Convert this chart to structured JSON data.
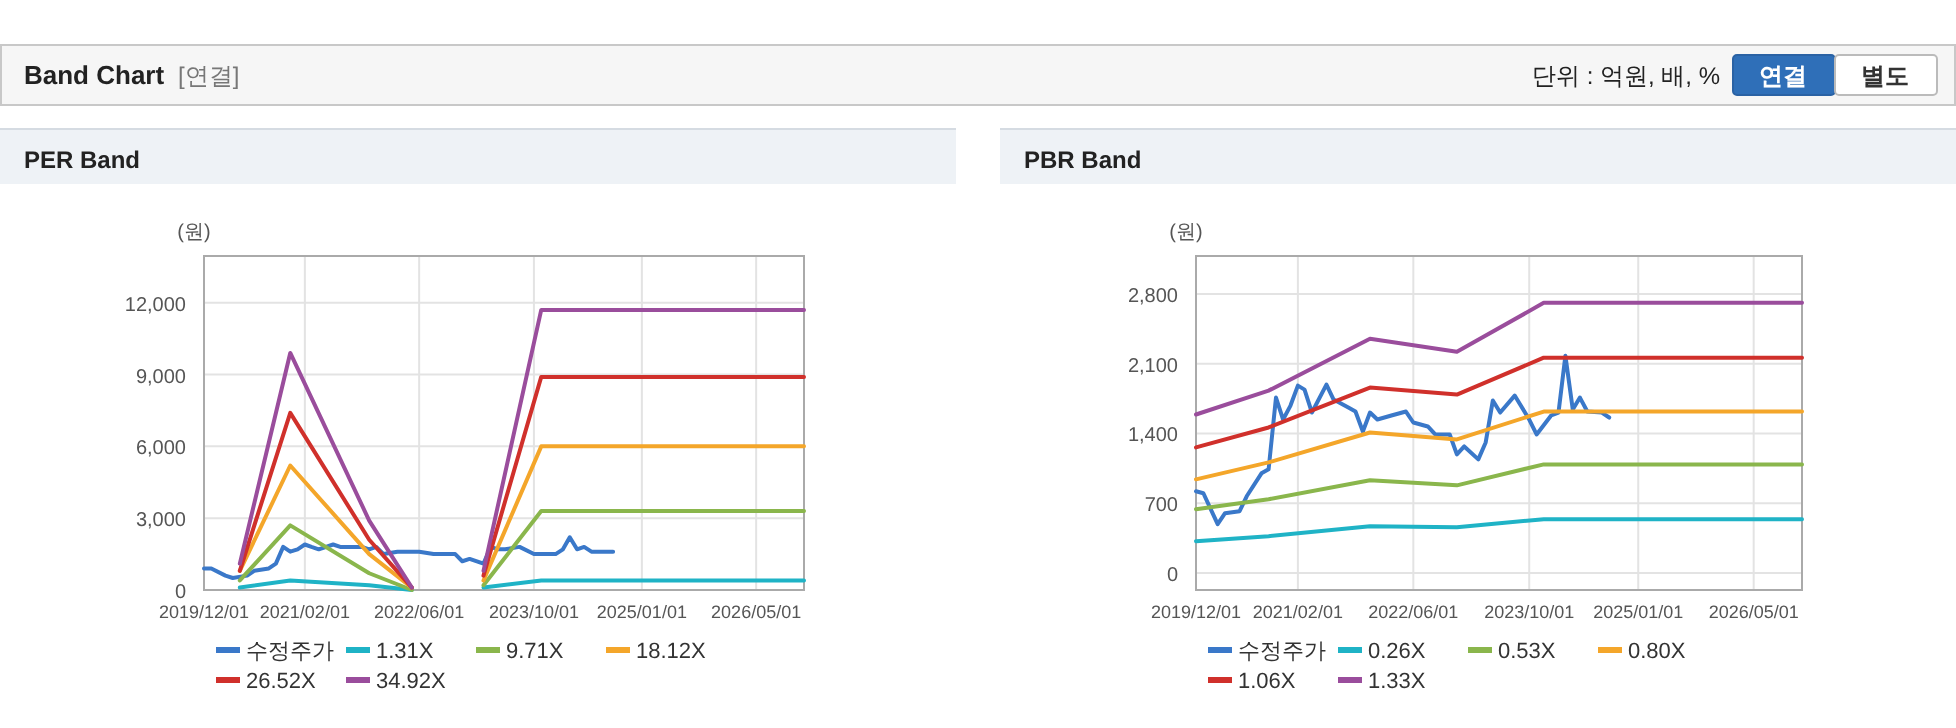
{
  "chart_data": [
    {
      "type": "other",
      "title": "Band Chart",
      "annotations": [
        "[연결]",
        "단위 : 억원, 배, %",
        "연결",
        "별도"
      ]
    },
    {
      "type": "line",
      "title": "PER Band",
      "ylabel": "(원)",
      "xlim": [
        "2019-12-01",
        "2026-11-20"
      ],
      "ylim": [
        0,
        13950
      ],
      "yticks": [
        {
          "value": 0,
          "label": "0"
        },
        {
          "value": 3000,
          "label": "3,000"
        },
        {
          "value": 6000,
          "label": "6,000"
        },
        {
          "value": 9000,
          "label": "9,000"
        },
        {
          "value": 12000,
          "label": "12,000"
        }
      ],
      "xticks": [
        {
          "value": "2019-12-01",
          "label": "2019/12/01"
        },
        {
          "value": "2021-02-01",
          "label": "2021/02/01"
        },
        {
          "value": "2022-06-01",
          "label": "2022/06/01"
        },
        {
          "value": "2023-10-01",
          "label": "2023/10/01"
        },
        {
          "value": "2025-01-01",
          "label": "2025/01/01"
        },
        {
          "value": "2026-05-01",
          "label": "2026/05/01"
        }
      ],
      "grid": true,
      "legend": "bottom",
      "marker": "none",
      "line_style": "solid",
      "series": [
        {
          "name": "수정주가",
          "color": "#3a78c9",
          "x": [
            "2019-12",
            "2020-01",
            "2020-03",
            "2020-04",
            "2020-06",
            "2020-07",
            "2020-09",
            "2020-10",
            "2020-11",
            "2020-12",
            "2021-01",
            "2021-02",
            "2021-03",
            "2021-04",
            "2021-06",
            "2021-07",
            "2021-09",
            "2021-10",
            "2021-11",
            "2021-12",
            "2022-01",
            "2022-03",
            "2022-05",
            "2022-06",
            "2022-08",
            "2022-09",
            "2022-11",
            "2022-12",
            "2023-01",
            "2023-03",
            "2023-04",
            "2023-05",
            "2023-06",
            "2023-08",
            "2023-10",
            "2023-11",
            "2024-01",
            "2024-02",
            "2024-03",
            "2024-04",
            "2024-05",
            "2024-06",
            "2024-08",
            "2024-09"
          ],
          "values": [
            900,
            900,
            600,
            500,
            600,
            800,
            900,
            1100,
            1800,
            1600,
            1700,
            1900,
            1800,
            1700,
            1900,
            1800,
            1800,
            1800,
            1700,
            1800,
            1500,
            1600,
            1600,
            1600,
            1500,
            1500,
            1500,
            1200,
            1300,
            1100,
            1800,
            1700,
            1700,
            1800,
            1500,
            1500,
            1500,
            1700,
            2200,
            1700,
            1800,
            1600,
            1600,
            1600
          ]
        },
        {
          "name": "1.31X",
          "color": "#1fb3c6",
          "x": [
            "2020-05",
            "2020-12",
            "2021-11",
            "2022-05",
            "2022-10",
            "2023-03",
            "2023-11",
            "2026-11-20"
          ],
          "values": [
            100,
            400,
            200,
            0,
            null,
            100,
            400,
            400
          ]
        },
        {
          "name": "9.71X",
          "color": "#8ab64c",
          "x": [
            "2020-05",
            "2020-12",
            "2021-11",
            "2022-05",
            "2022-10",
            "2023-03",
            "2023-11",
            "2026-11-20"
          ],
          "values": [
            400,
            2700,
            700,
            0,
            null,
            200,
            3300,
            3300
          ]
        },
        {
          "name": "18.12X",
          "color": "#f4a62a",
          "x": [
            "2020-05",
            "2020-12",
            "2021-11",
            "2022-05",
            "2022-10",
            "2023-03",
            "2023-11",
            "2026-11-20"
          ],
          "values": [
            800,
            5200,
            1500,
            100,
            null,
            400,
            6000,
            6000
          ]
        },
        {
          "name": "26.52X",
          "color": "#d0302b",
          "x": [
            "2020-05",
            "2020-12",
            "2021-11",
            "2022-05",
            "2022-10",
            "2023-03",
            "2023-11",
            "2026-11-20"
          ],
          "values": [
            800,
            7400,
            2100,
            100,
            null,
            600,
            8900,
            8900
          ]
        },
        {
          "name": "34.92X",
          "color": "#9a4d9c",
          "x": [
            "2020-05",
            "2020-12",
            "2021-11",
            "2022-05",
            "2022-10",
            "2023-03",
            "2023-11",
            "2026-11-20"
          ],
          "values": [
            1100,
            9900,
            2900,
            100,
            null,
            800,
            11700,
            11700
          ]
        }
      ]
    },
    {
      "type": "line",
      "title": "PBR Band",
      "ylabel": "(원)",
      "xlim": [
        "2019-12-01",
        "2026-11-20"
      ],
      "ylim": [
        -170,
        3180
      ],
      "yticks": [
        {
          "value": 0,
          "label": "0"
        },
        {
          "value": 700,
          "label": "700"
        },
        {
          "value": 1400,
          "label": "1,400"
        },
        {
          "value": 2100,
          "label": "2,100"
        },
        {
          "value": 2800,
          "label": "2,800"
        }
      ],
      "xticks": [
        {
          "value": "2019-12-01",
          "label": "2019/12/01"
        },
        {
          "value": "2021-02-01",
          "label": "2021/02/01"
        },
        {
          "value": "2022-06-01",
          "label": "2022/06/01"
        },
        {
          "value": "2023-10-01",
          "label": "2023/10/01"
        },
        {
          "value": "2025-01-01",
          "label": "2025/01/01"
        },
        {
          "value": "2026-05-01",
          "label": "2026/05/01"
        }
      ],
      "grid": true,
      "legend": "bottom",
      "marker": "none",
      "line_style": "solid",
      "series": [
        {
          "name": "수정주가",
          "color": "#3a78c9",
          "x": [
            "2019-12",
            "2020-01",
            "2020-03",
            "2020-04",
            "2020-06",
            "2020-07",
            "2020-09",
            "2020-10",
            "2020-11",
            "2020-12",
            "2021-01",
            "2021-02",
            "2021-03",
            "2021-04",
            "2021-06",
            "2021-07",
            "2021-09",
            "2021-10",
            "2021-11",
            "2021-12",
            "2022-01",
            "2022-03",
            "2022-05",
            "2022-06",
            "2022-08",
            "2022-09",
            "2022-11",
            "2022-12",
            "2023-01",
            "2023-03",
            "2023-04",
            "2023-05",
            "2023-06",
            "2023-08",
            "2023-10",
            "2023-11",
            "2024-01",
            "2024-02",
            "2024-03",
            "2024-04",
            "2024-05",
            "2024-06",
            "2024-08",
            "2024-09"
          ],
          "values": [
            820,
            800,
            490,
            600,
            620,
            770,
            1000,
            1040,
            1760,
            1540,
            1680,
            1880,
            1840,
            1610,
            1890,
            1740,
            1660,
            1620,
            1420,
            1610,
            1540,
            1580,
            1620,
            1510,
            1470,
            1390,
            1390,
            1190,
            1270,
            1140,
            1310,
            1730,
            1610,
            1780,
            1540,
            1390,
            1580,
            1610,
            2180,
            1640,
            1760,
            1620,
            1610,
            1560
          ]
        },
        {
          "name": "0.26X",
          "color": "#1fb3c6",
          "x": [
            "2019-12",
            "2020-10",
            "2021-12",
            "2022-12",
            "2023-12",
            "2026-11-20"
          ],
          "values": [
            320,
            370,
            470,
            460,
            540,
            540
          ]
        },
        {
          "name": "0.53X",
          "color": "#8ab64c",
          "x": [
            "2019-12",
            "2020-10",
            "2021-12",
            "2022-12",
            "2023-12",
            "2026-11-20"
          ],
          "values": [
            640,
            740,
            930,
            880,
            1090,
            1090
          ]
        },
        {
          "name": "0.80X",
          "color": "#f4a62a",
          "x": [
            "2019-12",
            "2020-10",
            "2021-12",
            "2022-12",
            "2023-12",
            "2026-11-20"
          ],
          "values": [
            940,
            1110,
            1410,
            1340,
            1620,
            1620
          ]
        },
        {
          "name": "1.06X",
          "color": "#d0302b",
          "x": [
            "2019-12",
            "2020-10",
            "2021-12",
            "2022-12",
            "2023-12",
            "2026-11-20"
          ],
          "values": [
            1260,
            1460,
            1860,
            1790,
            2160,
            2160
          ]
        },
        {
          "name": "1.33X",
          "color": "#9a4d9c",
          "x": [
            "2019-12",
            "2020-10",
            "2021-12",
            "2022-12",
            "2023-12",
            "2026-11-20"
          ],
          "values": [
            1590,
            1830,
            2350,
            2220,
            2710,
            2710
          ]
        }
      ]
    }
  ]
}
